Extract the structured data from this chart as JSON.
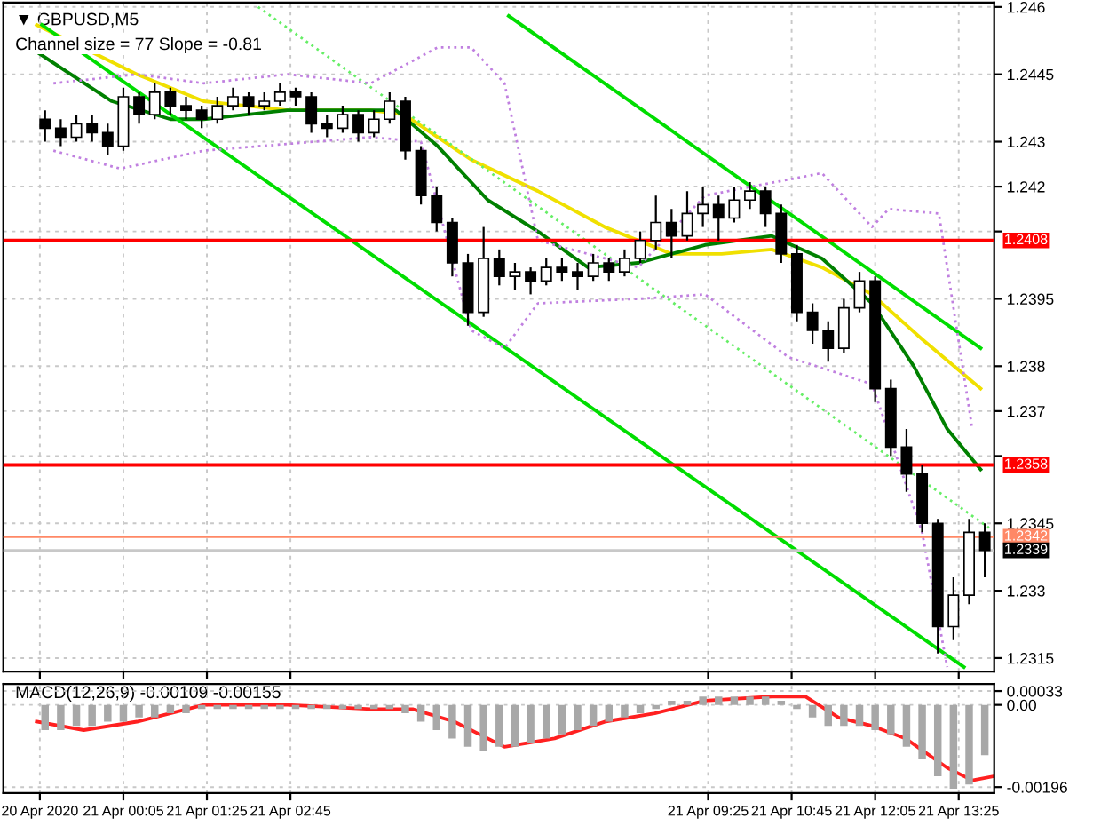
{
  "chart_data": [
    {
      "type": "candlestick",
      "title": "▼ GBPUSD,M5",
      "subtitle": "Channel size = 77 Slope = -0.81",
      "x": [
        "2020-04-20T22:50",
        "2020-04-20T23:05",
        "2020-04-20T23:20",
        "2020-04-20T23:35",
        "2020-04-20T23:50",
        "2020-04-21T00:05",
        "2020-04-21T00:20",
        "2020-04-21T00:35",
        "2020-04-21T00:50",
        "2020-04-21T01:05",
        "2020-04-21T01:20",
        "2020-04-21T01:35",
        "2020-04-21T01:50",
        "2020-04-21T02:05",
        "2020-04-21T02:20",
        "2020-04-21T02:35",
        "2020-04-21T02:50",
        "2020-04-21T03:05",
        "2020-04-21T03:20",
        "2020-04-21T03:35",
        "2020-04-21T03:50",
        "2020-04-21T04:05",
        "2020-04-21T04:20",
        "2020-04-21T04:35",
        "2020-04-21T04:50",
        "2020-04-21T05:05",
        "2020-04-21T05:20",
        "2020-04-21T05:35",
        "2020-04-21T05:50",
        "2020-04-21T06:05",
        "2020-04-21T06:20",
        "2020-04-21T06:35",
        "2020-04-21T06:50",
        "2020-04-21T07:05",
        "2020-04-21T07:20",
        "2020-04-21T07:35",
        "2020-04-21T07:50",
        "2020-04-21T08:05",
        "2020-04-21T08:20",
        "2020-04-21T08:35",
        "2020-04-21T08:50",
        "2020-04-21T09:05",
        "2020-04-21T09:20",
        "2020-04-21T09:35",
        "2020-04-21T09:50",
        "2020-04-21T10:05",
        "2020-04-21T10:20",
        "2020-04-21T10:35",
        "2020-04-21T10:50",
        "2020-04-21T11:05",
        "2020-04-21T11:20",
        "2020-04-21T11:35",
        "2020-04-21T11:50",
        "2020-04-21T12:05",
        "2020-04-21T12:20",
        "2020-04-21T12:35",
        "2020-04-21T12:50",
        "2020-04-21T13:05",
        "2020-04-21T13:20",
        "2020-04-21T13:35",
        "2020-04-21T13:50"
      ],
      "ohlc": [
        [
          1.2435,
          1.2437,
          1.243,
          1.2433
        ],
        [
          1.2433,
          1.2435,
          1.2429,
          1.2431
        ],
        [
          1.2431,
          1.2436,
          1.243,
          1.2434
        ],
        [
          1.2434,
          1.2436,
          1.243,
          1.2432
        ],
        [
          1.2432,
          1.2434,
          1.2427,
          1.2429
        ],
        [
          1.2429,
          1.2442,
          1.2428,
          1.244
        ],
        [
          1.244,
          1.2441,
          1.2434,
          1.2436
        ],
        [
          1.2436,
          1.2443,
          1.2435,
          1.2441
        ],
        [
          1.2441,
          1.2442,
          1.2436,
          1.2438
        ],
        [
          1.2438,
          1.244,
          1.2435,
          1.2437
        ],
        [
          1.2437,
          1.2438,
          1.2433,
          1.2435
        ],
        [
          1.2435,
          1.244,
          1.2434,
          1.2438
        ],
        [
          1.2438,
          1.2442,
          1.2437,
          1.244
        ],
        [
          1.244,
          1.2441,
          1.2436,
          1.2438
        ],
        [
          1.2438,
          1.2441,
          1.2437,
          1.2439
        ],
        [
          1.2439,
          1.2443,
          1.2438,
          1.2441
        ],
        [
          1.2441,
          1.2442,
          1.2438,
          1.244
        ],
        [
          1.244,
          1.2441,
          1.2432,
          1.2434
        ],
        [
          1.2434,
          1.2436,
          1.2431,
          1.2433
        ],
        [
          1.2433,
          1.2438,
          1.2432,
          1.2436
        ],
        [
          1.2436,
          1.2437,
          1.243,
          1.2432
        ],
        [
          1.2432,
          1.2437,
          1.2431,
          1.2435
        ],
        [
          1.2435,
          1.2441,
          1.2434,
          1.2439
        ],
        [
          1.2439,
          1.244,
          1.2426,
          1.2428
        ],
        [
          1.2428,
          1.2429,
          1.2416,
          1.2418
        ],
        [
          1.2418,
          1.242,
          1.241,
          1.2412
        ],
        [
          1.2412,
          1.2413,
          1.24,
          1.2403
        ],
        [
          1.2403,
          1.2405,
          1.2389,
          1.2392
        ],
        [
          1.2392,
          1.2411,
          1.2391,
          1.2404
        ],
        [
          1.2404,
          1.2406,
          1.2398,
          1.24
        ],
        [
          1.24,
          1.2403,
          1.2397,
          1.2401
        ],
        [
          1.2401,
          1.2402,
          1.2396,
          1.2399
        ],
        [
          1.2399,
          1.2404,
          1.2398,
          1.2402
        ],
        [
          1.2402,
          1.2404,
          1.2399,
          1.2401
        ],
        [
          1.2401,
          1.2403,
          1.2397,
          1.24
        ],
        [
          1.24,
          1.2405,
          1.2399,
          1.2403
        ],
        [
          1.2403,
          1.2404,
          1.2399,
          1.2401
        ],
        [
          1.2401,
          1.2406,
          1.24,
          1.2404
        ],
        [
          1.2404,
          1.241,
          1.2403,
          1.2408
        ],
        [
          1.2408,
          1.2418,
          1.2406,
          1.2412
        ],
        [
          1.2412,
          1.2415,
          1.2404,
          1.2409
        ],
        [
          1.2409,
          1.2419,
          1.2408,
          1.2414
        ],
        [
          1.2414,
          1.242,
          1.2411,
          1.2416
        ],
        [
          1.2416,
          1.2418,
          1.2408,
          1.2413
        ],
        [
          1.2413,
          1.242,
          1.2412,
          1.2417
        ],
        [
          1.2417,
          1.2421,
          1.2415,
          1.2419
        ],
        [
          1.2419,
          1.242,
          1.2411,
          1.2414
        ],
        [
          1.2414,
          1.2416,
          1.2403,
          1.2405
        ],
        [
          1.2405,
          1.2407,
          1.239,
          1.2392
        ],
        [
          1.2392,
          1.2394,
          1.2385,
          1.2388
        ],
        [
          1.2388,
          1.239,
          1.2381,
          1.2384
        ],
        [
          1.2384,
          1.2395,
          1.2383,
          1.2393
        ],
        [
          1.2393,
          1.2401,
          1.2392,
          1.2399
        ],
        [
          1.2399,
          1.24,
          1.2372,
          1.2375
        ],
        [
          1.2375,
          1.2377,
          1.236,
          1.2362
        ],
        [
          1.2362,
          1.2366,
          1.2352,
          1.2356
        ],
        [
          1.2356,
          1.2358,
          1.2343,
          1.2345
        ],
        [
          1.2345,
          1.2346,
          1.2316,
          1.2322
        ],
        [
          1.2322,
          1.2333,
          1.2319,
          1.2329
        ],
        [
          1.2329,
          1.2346,
          1.2327,
          1.2343
        ],
        [
          1.2343,
          1.2345,
          1.2333,
          1.2339
        ]
      ],
      "series": [
        {
          "type": "line",
          "color": "#f0e000",
          "x": [
            "2020-04-20T22:42",
            "2020-04-21T00:18",
            "2020-04-21T01:22",
            "2020-04-21T02:42",
            "2020-04-21T04:02",
            "2020-04-21T04:34",
            "2020-04-21T05:38",
            "2020-04-21T06:42",
            "2020-04-21T07:46",
            "2020-04-21T08:50",
            "2020-04-21T09:38",
            "2020-04-21T10:26",
            "2020-04-21T11:14",
            "2020-04-21T12:02",
            "2020-04-21T12:50",
            "2020-04-21T13:46"
          ],
          "values": [
            1.2456,
            1.2445,
            1.2439,
            1.2437,
            1.2437,
            1.2436,
            1.2426,
            1.2419,
            1.2411,
            1.2405,
            1.2405,
            1.2406,
            1.2402,
            1.2396,
            1.2386,
            1.2375
          ]
        },
        {
          "type": "line",
          "color": "#008000",
          "x": [
            "2020-04-20T22:42",
            "2020-04-20T23:54",
            "2020-04-21T00:50",
            "2020-04-21T01:22",
            "2020-04-21T02:42",
            "2020-04-21T04:26",
            "2020-04-21T05:06",
            "2020-04-21T05:54",
            "2020-04-21T06:42",
            "2020-04-21T07:30",
            "2020-04-21T08:18",
            "2020-04-21T09:22",
            "2020-04-21T10:26",
            "2020-04-21T11:14",
            "2020-04-21T12:02",
            "2020-04-21T12:42",
            "2020-04-21T13:14",
            "2020-04-21T13:46"
          ],
          "values": [
            1.245,
            1.2439,
            1.2435,
            1.2435,
            1.2437,
            1.2437,
            1.2429,
            1.2417,
            1.241,
            1.2402,
            1.2403,
            1.2407,
            1.2409,
            1.2404,
            1.2394,
            1.238,
            1.2366,
            1.2357
          ]
        },
        {
          "type": "line",
          "color": "#00dd00",
          "x": [
            "2020-04-21T06:14",
            "2020-04-21T13:46"
          ],
          "values": [
            1.2458,
            1.2384
          ]
        },
        {
          "type": "line",
          "color": "#00dd00",
          "x": [
            "2020-04-20T22:47",
            "2020-04-21T13:30"
          ],
          "values": [
            1.2456,
            1.2313
          ]
        },
        {
          "type": "line",
          "color": "#66ee66",
          "line_style": "dotted",
          "x": [
            "2020-04-21T02:14",
            "2020-04-21T13:54"
          ],
          "values": [
            1.246,
            1.2344
          ]
        },
        {
          "type": "line",
          "color": "#c080e0",
          "line_style": "dotted",
          "x": [
            "2020-04-20T22:58",
            "2020-04-21T00:18",
            "2020-04-21T01:22",
            "2020-04-21T02:42",
            "2020-04-21T04:02",
            "2020-04-21T05:06",
            "2020-04-21T05:38",
            "2020-04-21T06:10",
            "2020-04-21T06:42",
            "2020-04-21T08:18",
            "2020-04-21T09:22",
            "2020-04-21T11:14",
            "2020-04-21T12:02",
            "2020-04-21T12:18",
            "2020-04-21T13:06",
            "2020-04-21T13:38"
          ],
          "values": [
            1.2443,
            1.2445,
            1.2443,
            1.2445,
            1.2443,
            1.2451,
            1.2451,
            1.2443,
            1.2408,
            1.2402,
            1.2418,
            1.2423,
            1.2411,
            1.2415,
            1.2414,
            1.2366
          ]
        },
        {
          "type": "line",
          "color": "#c080e0",
          "line_style": "dotted",
          "x": [
            "2020-04-20T22:58",
            "2020-04-21T00:02",
            "2020-04-21T01:22",
            "2020-04-21T04:02",
            "2020-04-21T04:50",
            "2020-04-21T05:38",
            "2020-04-21T06:10",
            "2020-04-21T06:42",
            "2020-04-21T08:18",
            "2020-04-21T09:22",
            "2020-04-21T10:42",
            "2020-04-21T12:02",
            "2020-04-21T12:50",
            "2020-04-21T13:14"
          ],
          "values": [
            1.2428,
            1.2424,
            1.2428,
            1.2431,
            1.243,
            1.2388,
            1.2384,
            1.2394,
            1.2395,
            1.2396,
            1.2382,
            1.2376,
            1.2343,
            1.2313
          ]
        }
      ],
      "ylim": [
        1.2312,
        1.2461
      ],
      "xlim": [
        "2020-04-20T22:10",
        "2020-04-21T13:59"
      ],
      "yticks": [
        1.2315,
        1.233,
        1.2345,
        {
          "value": 1.236,
          "label": null
        },
        1.237,
        1.238,
        1.2395,
        {
          "value": 1.241,
          "label": null
        },
        1.242,
        1.243,
        1.2445,
        1.246
      ],
      "xticks": [
        {
          "value": "2020-04-20T22:45",
          "label": null
        },
        {
          "value": "2020-04-21T00:05",
          "label": null
        },
        {
          "value": "2020-04-21T01:25",
          "label": null
        },
        {
          "value": "2020-04-21T02:45",
          "label": null
        },
        {
          "value": "2020-04-21T09:25",
          "label": null
        },
        {
          "value": "2020-04-21T10:45",
          "label": null
        },
        {
          "value": "2020-04-21T12:05",
          "label": null
        },
        {
          "value": "2020-04-21T13:25",
          "label": null
        }
      ],
      "tick_labels": "y",
      "grid": true,
      "ref_lines": [
        {
          "axis": "y",
          "value": 1.2408,
          "label": "1.2408",
          "color": "#ff0000"
        },
        {
          "axis": "y",
          "value": 1.2358,
          "label": "1.2358",
          "color": "#ff0000"
        },
        {
          "axis": "y",
          "value": 1.2342,
          "label": "1.2342",
          "color": "#ff8866"
        },
        {
          "axis": "y",
          "value": 1.2339,
          "label": "1.2339",
          "color": "#c8c8c8"
        }
      ]
    },
    {
      "type": "bar",
      "title": "MACD(12,26,9) -0.00109 -0.00155",
      "series": [
        {
          "type": "bar",
          "color": "#a8a8a8",
          "x": [
            "2020-04-20T22:50",
            "2020-04-20T23:05",
            "2020-04-20T23:20",
            "2020-04-20T23:35",
            "2020-04-20T23:50",
            "2020-04-21T00:05",
            "2020-04-21T00:20",
            "2020-04-21T00:35",
            "2020-04-21T00:50",
            "2020-04-21T01:05",
            "2020-04-21T01:20",
            "2020-04-21T01:35",
            "2020-04-21T01:50",
            "2020-04-21T02:05",
            "2020-04-21T02:20",
            "2020-04-21T02:35",
            "2020-04-21T02:50",
            "2020-04-21T03:05",
            "2020-04-21T03:20",
            "2020-04-21T03:35",
            "2020-04-21T03:50",
            "2020-04-21T04:05",
            "2020-04-21T04:20",
            "2020-04-21T04:35",
            "2020-04-21T04:50",
            "2020-04-21T05:05",
            "2020-04-21T05:20",
            "2020-04-21T05:35",
            "2020-04-21T05:50",
            "2020-04-21T06:05",
            "2020-04-21T06:20",
            "2020-04-21T06:35",
            "2020-04-21T06:50",
            "2020-04-21T07:05",
            "2020-04-21T07:20",
            "2020-04-21T07:35",
            "2020-04-21T07:50",
            "2020-04-21T08:05",
            "2020-04-21T08:20",
            "2020-04-21T08:35",
            "2020-04-21T08:50",
            "2020-04-21T09:05",
            "2020-04-21T09:20",
            "2020-04-21T09:35",
            "2020-04-21T09:50",
            "2020-04-21T10:05",
            "2020-04-21T10:20",
            "2020-04-21T10:35",
            "2020-04-21T10:50",
            "2020-04-21T11:05",
            "2020-04-21T11:20",
            "2020-04-21T11:35",
            "2020-04-21T11:50",
            "2020-04-21T12:05",
            "2020-04-21T12:20",
            "2020-04-21T12:35",
            "2020-04-21T12:50",
            "2020-04-21T13:05",
            "2020-04-21T13:20",
            "2020-04-21T13:35",
            "2020-04-21T13:50"
          ],
          "values": [
            -0.0006,
            -0.0006,
            -0.0005,
            -0.0005,
            -0.0004,
            -0.0004,
            -0.0003,
            -0.0003,
            -0.0002,
            -0.0002,
            -0.0001,
            -0.0001,
            -0.0001,
            -0.0001,
            -0.0001,
            -0.0001,
            -0.0001,
            -0.0001,
            -0.0001,
            -0.0001,
            -0.0001,
            -0.0001,
            -0.0001,
            -0.0002,
            -0.0004,
            -0.0006,
            -0.0008,
            -0.001,
            -0.0011,
            -0.001,
            -0.001,
            -0.0009,
            -0.0008,
            -0.0007,
            -0.0006,
            -0.0005,
            -0.0004,
            -0.0003,
            -0.0002,
            -0.0001,
            0.0001,
            0.0001,
            0.0002,
            0.0002,
            0.0002,
            0.0002,
            0.0002,
            0.0001,
            -0.0001,
            -0.0003,
            -0.0005,
            -0.0005,
            -0.0005,
            -0.0006,
            -0.0007,
            -0.001,
            -0.0013,
            -0.0017,
            -0.002,
            -0.0019,
            -0.0012
          ]
        },
        {
          "type": "line",
          "color": "#ff2020",
          "x": [
            "2020-04-20T22:42",
            "2020-04-20T23:27",
            "2020-04-21T00:18",
            "2020-04-21T01:22",
            "2020-04-21T02:42",
            "2020-04-21T04:02",
            "2020-04-21T04:42",
            "2020-04-21T05:22",
            "2020-04-21T06:10",
            "2020-04-21T06:58",
            "2020-04-21T07:46",
            "2020-04-21T08:34",
            "2020-04-21T09:22",
            "2020-04-21T10:26",
            "2020-04-21T10:58",
            "2020-04-21T11:30",
            "2020-04-21T12:02",
            "2020-04-21T12:34",
            "2020-04-21T13:14",
            "2020-04-21T13:38",
            "2020-04-21T13:59"
          ],
          "values": [
            -0.0004,
            -0.0006,
            -0.0004,
            0.0,
            0.0,
            -0.0001,
            -0.0001,
            -0.0004,
            -0.001,
            -0.0008,
            -0.0004,
            -0.0002,
            0.0001,
            0.0002,
            0.0002,
            -0.0003,
            -0.0005,
            -0.0008,
            -0.0015,
            -0.0018,
            -0.0017
          ]
        }
      ],
      "ylim": [
        -0.0021,
        0.0005
      ],
      "xlim": [
        "2020-04-20T22:10",
        "2020-04-21T13:59"
      ],
      "yticks": [
        {
          "value": -0.00196,
          "label": "-0.00196"
        },
        {
          "value": 0.0,
          "label": "0.00"
        },
        {
          "value": 0.00033,
          "label": "0.00033"
        }
      ],
      "xticks": [
        {
          "value": "2020-04-20T22:45",
          "label": "20 Apr 2020"
        },
        {
          "value": "2020-04-21T00:05",
          "label": "21 Apr 00:05"
        },
        {
          "value": "2020-04-21T01:25",
          "label": "21 Apr 01:25"
        },
        {
          "value": "2020-04-21T02:45",
          "label": "21 Apr 02:45"
        },
        {
          "value": "2020-04-21T09:25",
          "label": "21 Apr 09:25"
        },
        {
          "value": "2020-04-21T10:45",
          "label": "21 Apr 10:45"
        },
        {
          "value": "2020-04-21T12:05",
          "label": "21 Apr 12:05"
        },
        {
          "value": "2020-04-21T13:25",
          "label": "21 Apr 13:25"
        }
      ],
      "grid": true
    }
  ]
}
